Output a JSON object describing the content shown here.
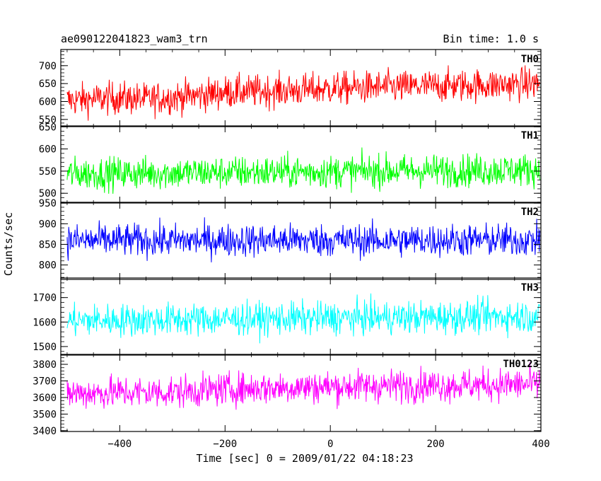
{
  "chart_data": {
    "type": "line",
    "title": "ae090122041823_wam3_trn",
    "bin_time_label": "Bin time: 1.0 s",
    "xlabel": "Time [sec] 0 = 2009/01/22 04:18:23",
    "ylabel": "Counts/sec",
    "xlim": [
      -512,
      400
    ],
    "x_ticks": [
      -400,
      -200,
      0,
      200,
      400
    ],
    "x_tick_labels": [
      "−400",
      "−200",
      "0",
      "200",
      "400"
    ],
    "grid": false,
    "series": [
      {
        "name": "TH0",
        "color": "#ff0000",
        "ylim": [
          530,
          745
        ],
        "y_ticks": [
          550,
          600,
          650,
          700
        ],
        "y_tick_labels": [
          "550",
          "600",
          "650",
          "700"
        ],
        "x": [
          -500,
          -450,
          -400,
          -350,
          -300,
          -250,
          -200,
          -150,
          -100,
          -50,
          0,
          50,
          100,
          150,
          200,
          250,
          300,
          350,
          400
        ],
        "values": [
          603,
          607,
          610,
          606,
          612,
          617,
          626,
          628,
          630,
          632,
          636,
          638,
          640,
          641,
          643,
          645,
          646,
          648,
          650
        ]
      },
      {
        "name": "TH1",
        "color": "#00ff00",
        "ylim": [
          478,
          652
        ],
        "y_ticks": [
          500,
          550,
          600,
          650
        ],
        "y_tick_labels": [
          "500",
          "550",
          "600",
          "650"
        ],
        "x": [
          -500,
          -400,
          -300,
          -200,
          -100,
          0,
          100,
          200,
          300,
          400
        ],
        "values": [
          544,
          545,
          546,
          547,
          548,
          549,
          550,
          551,
          552,
          553
        ]
      },
      {
        "name": "TH2",
        "color": "#0000ff",
        "ylim": [
          765,
          952
        ],
        "y_ticks": [
          800,
          850,
          900,
          950
        ],
        "y_tick_labels": [
          "800",
          "850",
          "900",
          "950"
        ],
        "x": [
          -500,
          -400,
          -300,
          -200,
          -100,
          0,
          100,
          200,
          300,
          400
        ],
        "values": [
          859,
          860,
          859,
          860,
          860,
          860,
          859,
          860,
          860,
          860
        ]
      },
      {
        "name": "TH3",
        "color": "#00ffff",
        "ylim": [
          1465,
          1780
        ],
        "y_ticks": [
          1500,
          1600,
          1700
        ],
        "y_tick_labels": [
          "1500",
          "1600",
          "1700"
        ],
        "x": [
          -500,
          -400,
          -300,
          -200,
          -100,
          0,
          100,
          200,
          300,
          400
        ],
        "values": [
          1605,
          1608,
          1610,
          1612,
          1614,
          1616,
          1618,
          1620,
          1622,
          1624
        ]
      },
      {
        "name": "TH0123",
        "color": "#ff00ff",
        "ylim": [
          3395,
          3860
        ],
        "y_ticks": [
          3400,
          3500,
          3600,
          3700,
          3800
        ],
        "y_tick_labels": [
          "3400",
          "3500",
          "3600",
          "3700",
          "3800"
        ],
        "x": [
          -500,
          -450,
          -400,
          -350,
          -300,
          -250,
          -200,
          -150,
          -100,
          -50,
          0,
          50,
          100,
          150,
          200,
          250,
          300,
          350,
          400
        ],
        "values": [
          3625,
          3628,
          3632,
          3630,
          3634,
          3640,
          3650,
          3655,
          3660,
          3662,
          3665,
          3668,
          3670,
          3672,
          3673,
          3675,
          3676,
          3678,
          3680
        ]
      }
    ]
  }
}
